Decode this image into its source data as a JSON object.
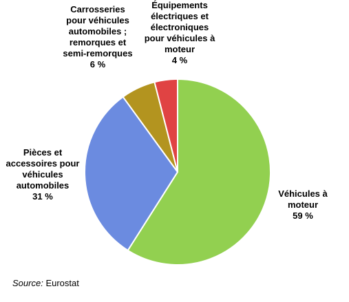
{
  "chart_data": {
    "type": "pie",
    "categories": [
      "Véhicules à moteur",
      "Pièces et accessoires pour véhicules automobiles",
      "Carrosseries pour véhicules automobiles ; remorques et semi-remorques",
      "Équipements électriques et électroniques pour véhicules à moteur"
    ],
    "values": [
      59,
      31,
      6,
      4
    ],
    "value_labels": [
      "59 %",
      "31 %",
      "6 %",
      "4 %"
    ],
    "colors": [
      "#92d050",
      "#6b8be0",
      "#b3941f",
      "#e04343"
    ],
    "source_label": "Source:",
    "source": "Eurostat"
  }
}
